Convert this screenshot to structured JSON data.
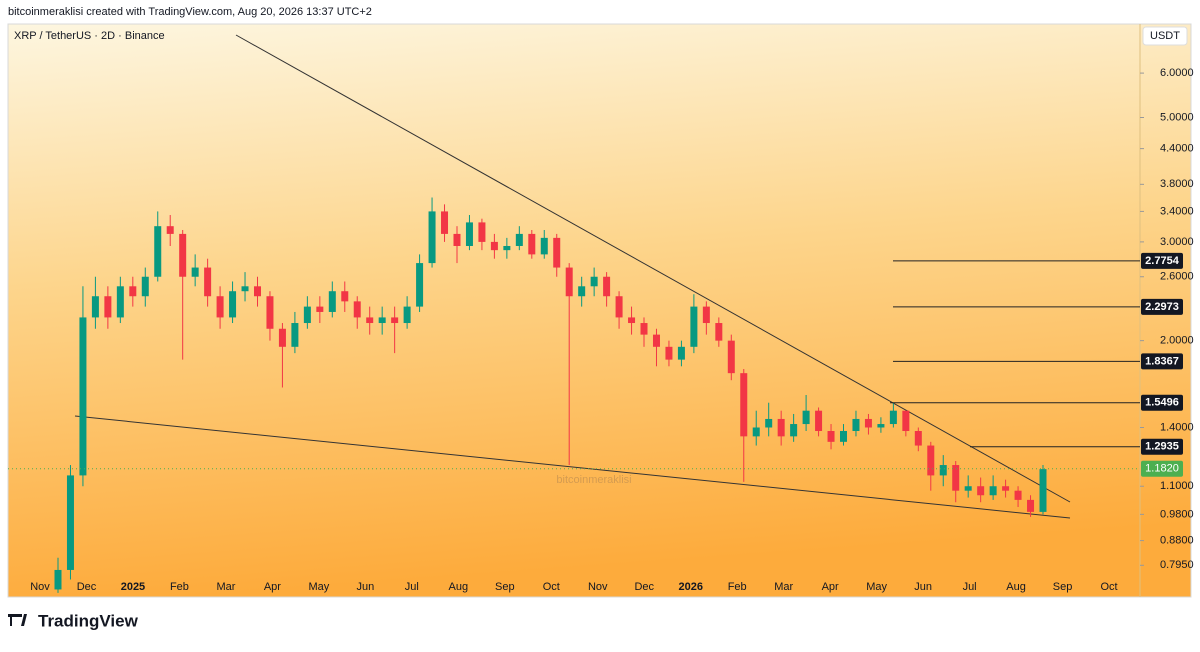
{
  "header": {
    "credit": "bitcoinmeraklisi created with TradingView.com, Aug 20, 2026 13:37 UTC+2",
    "brand": "TradingView"
  },
  "chart_data": {
    "type": "candlestick",
    "title": "XRP / TetherUS · 2D · Binance",
    "y_axis_label": "USDT",
    "watermark": "bitcoinmeraklisi",
    "log_scale": true,
    "up_color": "#089981",
    "down_color": "#f23645",
    "categories": [
      "Nov",
      "Dec",
      "2025",
      "Feb",
      "Mar",
      "Apr",
      "May",
      "Jun",
      "Jul",
      "Aug",
      "Sep",
      "Oct",
      "Nov",
      "Dec",
      "2026",
      "Feb",
      "Mar",
      "Apr",
      "May",
      "Jun",
      "Jul",
      "Aug",
      "Sep",
      "Oct"
    ],
    "open": [
      0.72,
      0.78,
      1.15,
      2.2,
      2.4,
      2.2,
      2.5,
      2.4,
      2.6,
      3.2,
      3.1,
      2.6,
      2.7,
      2.4,
      2.2,
      2.45,
      2.5,
      2.4,
      2.1,
      1.95,
      2.15,
      2.3,
      2.25,
      2.45,
      2.35,
      2.2,
      2.15,
      2.2,
      2.15,
      2.3,
      2.75,
      3.4,
      3.1,
      2.95,
      3.25,
      3.0,
      2.9,
      2.95,
      3.1,
      2.85,
      3.05,
      2.7,
      2.4,
      2.5,
      2.6,
      2.4,
      2.2,
      2.15,
      2.05,
      1.95,
      1.85,
      1.95,
      2.3,
      2.15,
      2.0,
      1.75,
      1.35,
      1.4,
      1.45,
      1.35,
      1.42,
      1.5,
      1.38,
      1.32,
      1.38,
      1.45,
      1.4,
      1.42,
      1.5,
      1.38,
      1.3,
      1.15,
      1.2,
      1.08,
      1.1,
      1.06,
      1.1,
      1.08,
      1.04,
      0.99
    ],
    "high": [
      0.82,
      1.2,
      2.5,
      2.6,
      2.5,
      2.6,
      2.6,
      2.7,
      3.4,
      3.35,
      3.15,
      2.85,
      2.8,
      2.5,
      2.55,
      2.65,
      2.6,
      2.45,
      2.15,
      2.25,
      2.4,
      2.4,
      2.55,
      2.55,
      2.4,
      2.3,
      2.3,
      2.3,
      2.4,
      2.85,
      3.6,
      3.5,
      3.2,
      3.35,
      3.3,
      3.1,
      3.05,
      3.2,
      3.15,
      3.15,
      3.1,
      2.75,
      2.6,
      2.7,
      2.65,
      2.45,
      2.3,
      2.2,
      2.1,
      2.0,
      2.0,
      2.42,
      2.35,
      2.2,
      2.05,
      1.78,
      1.5,
      1.55,
      1.5,
      1.48,
      1.6,
      1.52,
      1.42,
      1.42,
      1.5,
      1.48,
      1.46,
      1.55,
      1.5,
      1.4,
      1.32,
      1.25,
      1.22,
      1.15,
      1.14,
      1.15,
      1.13,
      1.1,
      1.06,
      1.2
    ],
    "low": [
      0.71,
      0.75,
      1.1,
      2.1,
      2.1,
      2.15,
      2.3,
      2.3,
      2.55,
      2.95,
      1.85,
      2.5,
      2.3,
      2.1,
      2.15,
      2.35,
      2.3,
      2.0,
      1.65,
      1.9,
      2.1,
      2.15,
      2.2,
      2.25,
      2.1,
      2.05,
      2.05,
      1.9,
      2.1,
      2.25,
      2.7,
      3.0,
      2.75,
      2.9,
      2.9,
      2.8,
      2.8,
      2.9,
      2.8,
      2.8,
      2.6,
      1.2,
      2.3,
      2.4,
      2.3,
      2.1,
      2.05,
      1.95,
      1.8,
      1.8,
      1.8,
      1.9,
      2.05,
      1.95,
      1.7,
      1.12,
      1.3,
      1.35,
      1.3,
      1.32,
      1.38,
      1.35,
      1.28,
      1.3,
      1.35,
      1.36,
      1.37,
      1.4,
      1.35,
      1.27,
      1.08,
      1.1,
      1.03,
      1.05,
      1.03,
      1.04,
      1.05,
      1.01,
      0.97,
      0.98
    ],
    "close": [
      0.78,
      1.15,
      2.2,
      2.4,
      2.2,
      2.5,
      2.4,
      2.6,
      3.2,
      3.1,
      2.6,
      2.7,
      2.4,
      2.2,
      2.45,
      2.5,
      2.4,
      2.1,
      1.95,
      2.15,
      2.3,
      2.25,
      2.45,
      2.35,
      2.2,
      2.15,
      2.2,
      2.15,
      2.3,
      2.75,
      3.4,
      3.1,
      2.95,
      3.25,
      3.0,
      2.9,
      2.95,
      3.1,
      2.85,
      3.05,
      2.7,
      2.4,
      2.5,
      2.6,
      2.4,
      2.2,
      2.15,
      2.05,
      1.95,
      1.85,
      1.95,
      2.3,
      2.15,
      2.0,
      1.75,
      1.35,
      1.4,
      1.45,
      1.35,
      1.42,
      1.5,
      1.38,
      1.32,
      1.38,
      1.45,
      1.4,
      1.42,
      1.5,
      1.38,
      1.3,
      1.15,
      1.2,
      1.08,
      1.1,
      1.06,
      1.1,
      1.08,
      1.04,
      0.99,
      1.18
    ],
    "ylim": [
      0.698,
      7.34
    ],
    "yticks": [
      {
        "value": 0.795,
        "label": "0.7950"
      },
      {
        "value": 0.88,
        "label": "0.8800"
      },
      {
        "value": 0.98,
        "label": "0.9800"
      },
      {
        "value": 1.1,
        "label": "1.1000"
      },
      {
        "value": 1.4,
        "label": "1.4000"
      },
      {
        "value": 2,
        "label": "2.0000"
      },
      {
        "value": 2.6,
        "label": "2.6000"
      },
      {
        "value": 3,
        "label": "3.0000"
      },
      {
        "value": 3.4,
        "label": "3.4000"
      },
      {
        "value": 3.8,
        "label": "3.8000"
      },
      {
        "value": 4.4,
        "label": "4.4000"
      },
      {
        "value": 5,
        "label": "5.0000"
      },
      {
        "value": 6,
        "label": "6.0000"
      }
    ],
    "levels": [
      2.7754,
      2.2973,
      1.8367,
      1.5496,
      1.2935
    ],
    "last_price": {
      "value": 1.182,
      "label": "1.1820"
    },
    "last_price_color": "#4caf50"
  }
}
